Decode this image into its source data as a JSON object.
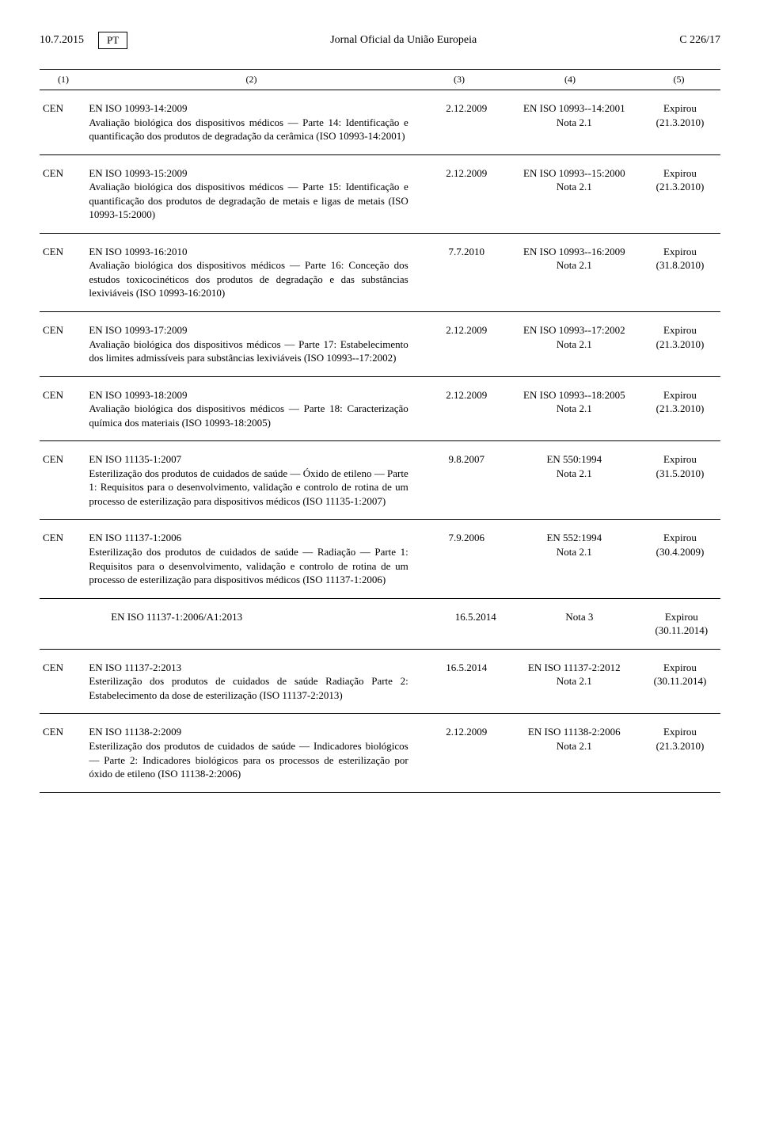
{
  "header": {
    "date": "10.7.2015",
    "lang": "PT",
    "title": "Jornal Oficial da União Europeia",
    "pageref": "C 226/17"
  },
  "columns": {
    "c1": "(1)",
    "c2": "(2)",
    "c3": "(3)",
    "c4": "(4)",
    "c5": "(5)"
  },
  "rows": [
    {
      "org": "CEN",
      "title": "EN ISO 10993-14:2009",
      "desc": "Avaliação biológica dos dispositivos médicos — Parte 14: Identificação e quantificação dos produtos de degradação da cerâmica (ISO 10993-14:2001)",
      "date": "2.12.2009",
      "ref": "EN ISO 10993--14:2001",
      "note": "Nota 2.1",
      "status": "Expirou",
      "status_date": "(21.3.2010)"
    },
    {
      "org": "CEN",
      "title": "EN ISO 10993-15:2009",
      "desc": "Avaliação biológica dos dispositivos médicos — Parte 15: Identificação e quantificação dos produtos de degradação de metais e ligas de metais (ISO 10993-15:2000)",
      "date": "2.12.2009",
      "ref": "EN ISO 10993--15:2000",
      "note": "Nota 2.1",
      "status": "Expirou",
      "status_date": "(21.3.2010)"
    },
    {
      "org": "CEN",
      "title": "EN ISO 10993-16:2010",
      "desc": "Avaliação biológica dos dispositivos médicos — Parte 16: Conceção dos estudos toxicocinéticos dos produtos de degradação e das substâncias lexiviáveis (ISO 10993-16:2010)",
      "date": "7.7.2010",
      "ref": "EN ISO 10993--16:2009",
      "note": "Nota 2.1",
      "status": "Expirou",
      "status_date": "(31.8.2010)"
    },
    {
      "org": "CEN",
      "title": "EN ISO 10993-17:2009",
      "desc": "Avaliação biológica dos dispositivos médicos — Parte 17: Estabelecimento dos limites admissíveis para substâncias lexiviáveis (ISO 10993--17:2002)",
      "date": "2.12.2009",
      "ref": "EN ISO 10993--17:2002",
      "note": "Nota 2.1",
      "status": "Expirou",
      "status_date": "(21.3.2010)"
    },
    {
      "org": "CEN",
      "title": "EN ISO 10993-18:2009",
      "desc": "Avaliação biológica dos dispositivos médicos — Parte 18: Caracterização química dos materiais (ISO 10993-18:2005)",
      "date": "2.12.2009",
      "ref": "EN ISO 10993--18:2005",
      "note": "Nota 2.1",
      "status": "Expirou",
      "status_date": "(21.3.2010)"
    },
    {
      "org": "CEN",
      "title": "EN ISO 11135-1:2007",
      "desc": "Esterilização dos produtos de cuidados de saúde — Óxido de etileno — Parte 1: Requisitos para o desenvolvimento, validação e controlo de rotina de um processo de esterilização para dispositivos médicos (ISO 11135-1:2007)",
      "date": "9.8.2007",
      "ref": "EN 550:1994",
      "note": "Nota 2.1",
      "status": "Expirou",
      "status_date": "(31.5.2010)"
    },
    {
      "org": "CEN",
      "title": "EN ISO 11137-1:2006",
      "desc": "Esterilização dos produtos de cuidados de saúde — Radiação — Parte 1: Requisitos para o desenvolvimento, validação e controlo de rotina de um processo de esterilização para dispositivos médicos (ISO 11137-1:2006)",
      "date": "7.9.2006",
      "ref": "EN 552:1994",
      "note": "Nota 2.1",
      "status": "Expirou",
      "status_date": "(30.4.2009)"
    },
    {
      "org": "",
      "title": "EN ISO 11137-1:2006/A1:2013",
      "desc": "",
      "date": "16.5.2014",
      "ref": "Nota 3",
      "note": "",
      "status": "Expirou",
      "status_date": "(30.11.2014)",
      "indent": true
    },
    {
      "org": "CEN",
      "title": "EN ISO 11137-2:2013",
      "desc": "Esterilização dos produtos de cuidados de saúde Radiação Parte 2: Estabelecimento da dose de esterilização (ISO 11137-2:2013)",
      "date": "16.5.2014",
      "ref": "EN ISO 11137-2:2012",
      "note": "Nota 2.1",
      "status": "Expirou",
      "status_date": "(30.11.2014)"
    },
    {
      "org": "CEN",
      "title": "EN ISO 11138-2:2009",
      "desc": "Esterilização dos produtos de cuidados de saúde — Indicadores biológicos — Parte 2: Indicadores biológicos para os processos de esterilização por óxido de etileno (ISO 11138-2:2006)",
      "date": "2.12.2009",
      "ref": "EN ISO 11138-2:2006",
      "note": "Nota 2.1",
      "status": "Expirou",
      "status_date": "(21.3.2010)"
    }
  ]
}
